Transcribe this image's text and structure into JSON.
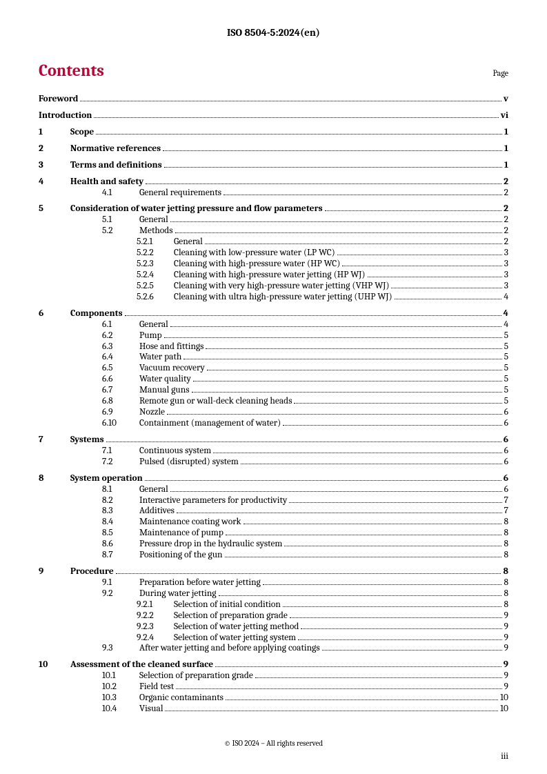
{
  "document": {
    "id": "ISO 8504-5:2024(en)",
    "contentsTitle": "Contents",
    "pageLabel": "Page",
    "copyright": "© ISO 2024 – All rights reserved",
    "pageNumber": "iii"
  },
  "layout": {
    "indent_l0": 0,
    "indent_l1": 46,
    "numcol_l1": 46,
    "subnum_w": 50,
    "indent_l2": 92,
    "subnum2_w": 54,
    "indent_l3": 142,
    "subnum3_w": 54
  },
  "colors": {
    "accent": "#b30838",
    "text": "#000000",
    "background": "#ffffff"
  },
  "toc": [
    {
      "type": "block",
      "rows": [
        {
          "level": 0,
          "bold": true,
          "title": "Foreword",
          "page": "v"
        }
      ]
    },
    {
      "type": "block",
      "rows": [
        {
          "level": 0,
          "bold": true,
          "title": "Introduction",
          "page": "vi"
        }
      ]
    },
    {
      "type": "block",
      "rows": [
        {
          "level": 1,
          "bold": true,
          "num": "1",
          "title": "Scope",
          "page": "1"
        }
      ]
    },
    {
      "type": "block",
      "rows": [
        {
          "level": 1,
          "bold": true,
          "num": "2",
          "title": "Normative references",
          "page": "1"
        }
      ]
    },
    {
      "type": "block",
      "rows": [
        {
          "level": 1,
          "bold": true,
          "num": "3",
          "title": "Terms and definitions",
          "page": "1"
        }
      ]
    },
    {
      "type": "block",
      "rows": [
        {
          "level": 1,
          "bold": true,
          "num": "4",
          "title": "Health and safety",
          "page": "2"
        },
        {
          "level": 2,
          "num": "4.1",
          "title": "General requirements",
          "page": "2"
        }
      ]
    },
    {
      "type": "block",
      "rows": [
        {
          "level": 1,
          "bold": true,
          "num": "5",
          "title": "Consideration of water jetting pressure and flow parameters",
          "page": "2"
        },
        {
          "level": 2,
          "num": "5.1",
          "title": "General",
          "page": "2"
        },
        {
          "level": 2,
          "num": "5.2",
          "title": "Methods",
          "page": "2"
        },
        {
          "level": 3,
          "num": "5.2.1",
          "title": "General",
          "page": "2"
        },
        {
          "level": 3,
          "num": "5.2.2",
          "title": "Cleaning with low-pressure water (LP WC)",
          "page": "3"
        },
        {
          "level": 3,
          "num": "5.2.3",
          "title": "Cleaning with high-pressure water (HP WC)",
          "page": "3"
        },
        {
          "level": 3,
          "num": "5.2.4",
          "title": "Cleaning with high-pressure water jetting (HP WJ)",
          "page": "3"
        },
        {
          "level": 3,
          "num": "5.2.5",
          "title": "Cleaning with very high-pressure water jetting (VHP WJ)",
          "page": "3"
        },
        {
          "level": 3,
          "num": "5.2.6",
          "title": "Cleaning with ultra high-pressure water jetting (UHP WJ)",
          "page": "4"
        }
      ]
    },
    {
      "type": "block",
      "rows": [
        {
          "level": 1,
          "bold": true,
          "num": "6",
          "title": "Components",
          "page": "4"
        },
        {
          "level": 2,
          "num": "6.1",
          "title": "General",
          "page": "4"
        },
        {
          "level": 2,
          "num": "6.2",
          "title": "Pump",
          "page": "5"
        },
        {
          "level": 2,
          "num": "6.3",
          "title": "Hose and fittings",
          "page": "5"
        },
        {
          "level": 2,
          "num": "6.4",
          "title": "Water path",
          "page": "5"
        },
        {
          "level": 2,
          "num": "6.5",
          "title": "Vacuum recovery",
          "page": "5"
        },
        {
          "level": 2,
          "num": "6.6",
          "title": "Water quality",
          "page": "5"
        },
        {
          "level": 2,
          "num": "6.7",
          "title": "Manual guns",
          "page": "5"
        },
        {
          "level": 2,
          "num": "6.8",
          "title": "Remote gun or wall-deck cleaning heads",
          "page": "5"
        },
        {
          "level": 2,
          "num": "6.9",
          "title": "Nozzle",
          "page": "6"
        },
        {
          "level": 2,
          "num": "6.10",
          "title": "Containment (management of water)",
          "page": "6"
        }
      ]
    },
    {
      "type": "block",
      "rows": [
        {
          "level": 1,
          "bold": true,
          "num": "7",
          "title": "Systems",
          "page": "6"
        },
        {
          "level": 2,
          "num": "7.1",
          "title": "Continuous system",
          "page": "6"
        },
        {
          "level": 2,
          "num": "7.2",
          "title": "Pulsed (disrupted) system",
          "page": "6"
        }
      ]
    },
    {
      "type": "block",
      "rows": [
        {
          "level": 1,
          "bold": true,
          "num": "8",
          "title": "System operation",
          "page": "6"
        },
        {
          "level": 2,
          "num": "8.1",
          "title": "General",
          "page": "6"
        },
        {
          "level": 2,
          "num": "8.2",
          "title": "Interactive parameters for productivity",
          "page": "7"
        },
        {
          "level": 2,
          "num": "8.3",
          "title": "Additives",
          "page": "7"
        },
        {
          "level": 2,
          "num": "8.4",
          "title": "Maintenance coating work",
          "page": "8"
        },
        {
          "level": 2,
          "num": "8.5",
          "title": "Maintenance of pump",
          "page": "8"
        },
        {
          "level": 2,
          "num": "8.6",
          "title": "Pressure drop in the hydraulic system",
          "page": "8"
        },
        {
          "level": 2,
          "num": "8.7",
          "title": "Positioning of the gun",
          "page": "8"
        }
      ]
    },
    {
      "type": "block",
      "rows": [
        {
          "level": 1,
          "bold": true,
          "num": "9",
          "title": "Procedure",
          "page": "8"
        },
        {
          "level": 2,
          "num": "9.1",
          "title": "Preparation before water jetting",
          "page": "8"
        },
        {
          "level": 2,
          "num": "9.2",
          "title": "During water jetting",
          "page": "8"
        },
        {
          "level": 3,
          "num": "9.2.1",
          "title": "Selection of initial condition",
          "page": "8"
        },
        {
          "level": 3,
          "num": "9.2.2",
          "title": "Selection of preparation grade",
          "page": "9"
        },
        {
          "level": 3,
          "num": "9.2.3",
          "title": "Selection of water jetting method",
          "page": "9"
        },
        {
          "level": 3,
          "num": "9.2.4",
          "title": "Selection of water jetting system",
          "page": "9"
        },
        {
          "level": 2,
          "num": "9.3",
          "title": "After water jetting and before applying coatings",
          "page": "9"
        }
      ]
    },
    {
      "type": "block",
      "rows": [
        {
          "level": 1,
          "bold": true,
          "num": "10",
          "title": "Assessment of the cleaned surface",
          "page": "9"
        },
        {
          "level": 2,
          "num": "10.1",
          "title": "Selection of preparation grade",
          "page": "9"
        },
        {
          "level": 2,
          "num": "10.2",
          "title": "Field test",
          "page": "9"
        },
        {
          "level": 2,
          "num": "10.3",
          "title": "Organic contaminants",
          "page": "10"
        },
        {
          "level": 2,
          "num": "10.4",
          "title": "Visual",
          "page": "10"
        }
      ]
    }
  ]
}
